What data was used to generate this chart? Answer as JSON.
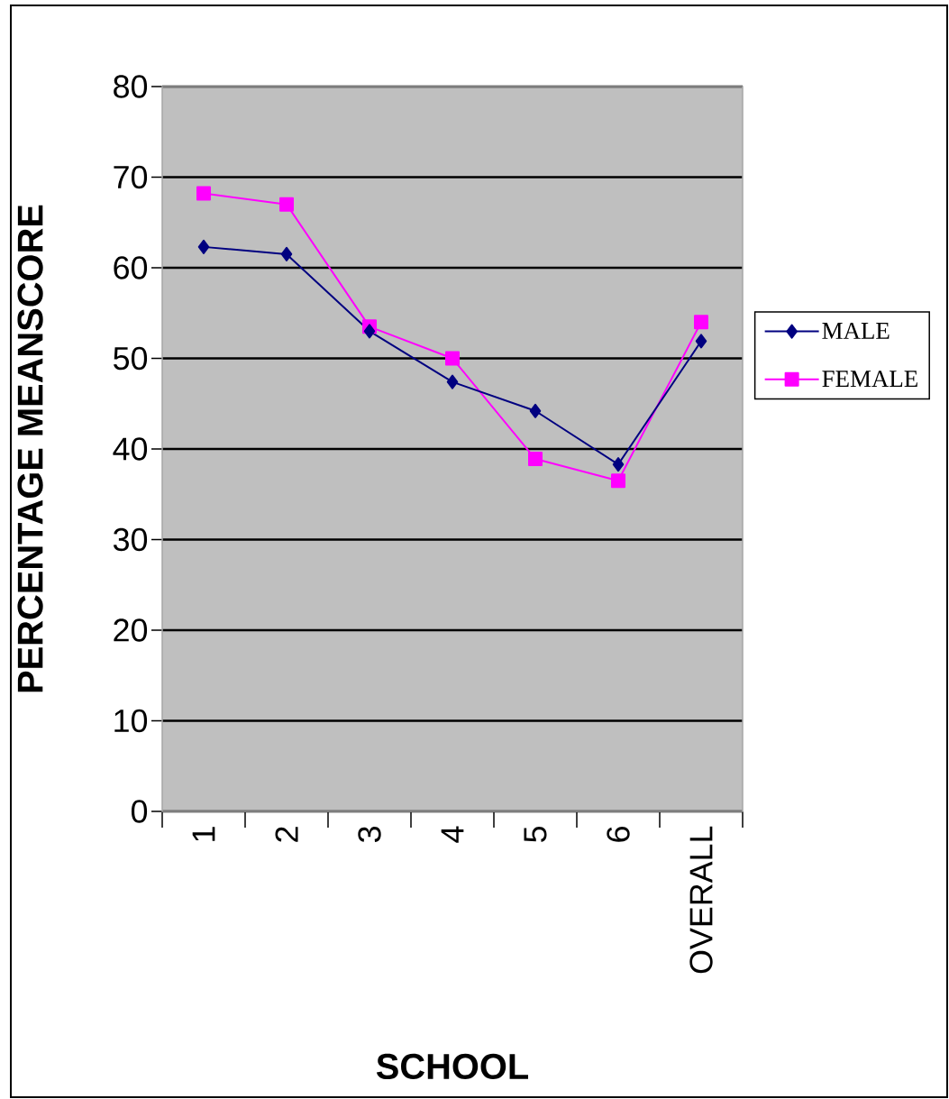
{
  "chart_data": {
    "type": "line",
    "xlabel": "SCHOOL",
    "ylabel": "PERCENTAGE MEANSCORE",
    "categories": [
      "1",
      "2",
      "3",
      "4",
      "5",
      "6",
      "OVERALL"
    ],
    "series": [
      {
        "name": "MALE",
        "color": "#000080",
        "marker": "diamond",
        "values": [
          62.3,
          61.5,
          53.0,
          47.4,
          44.2,
          38.3,
          51.9
        ]
      },
      {
        "name": "FEMALE",
        "color": "#ff00ff",
        "marker": "square",
        "values": [
          68.2,
          67.0,
          53.5,
          50.0,
          38.9,
          36.5,
          54.0
        ]
      }
    ],
    "ylim": [
      0,
      80
    ],
    "yticks": [
      0,
      10,
      20,
      30,
      40,
      50,
      60,
      70,
      80
    ],
    "grid": "y",
    "legend": "right"
  }
}
